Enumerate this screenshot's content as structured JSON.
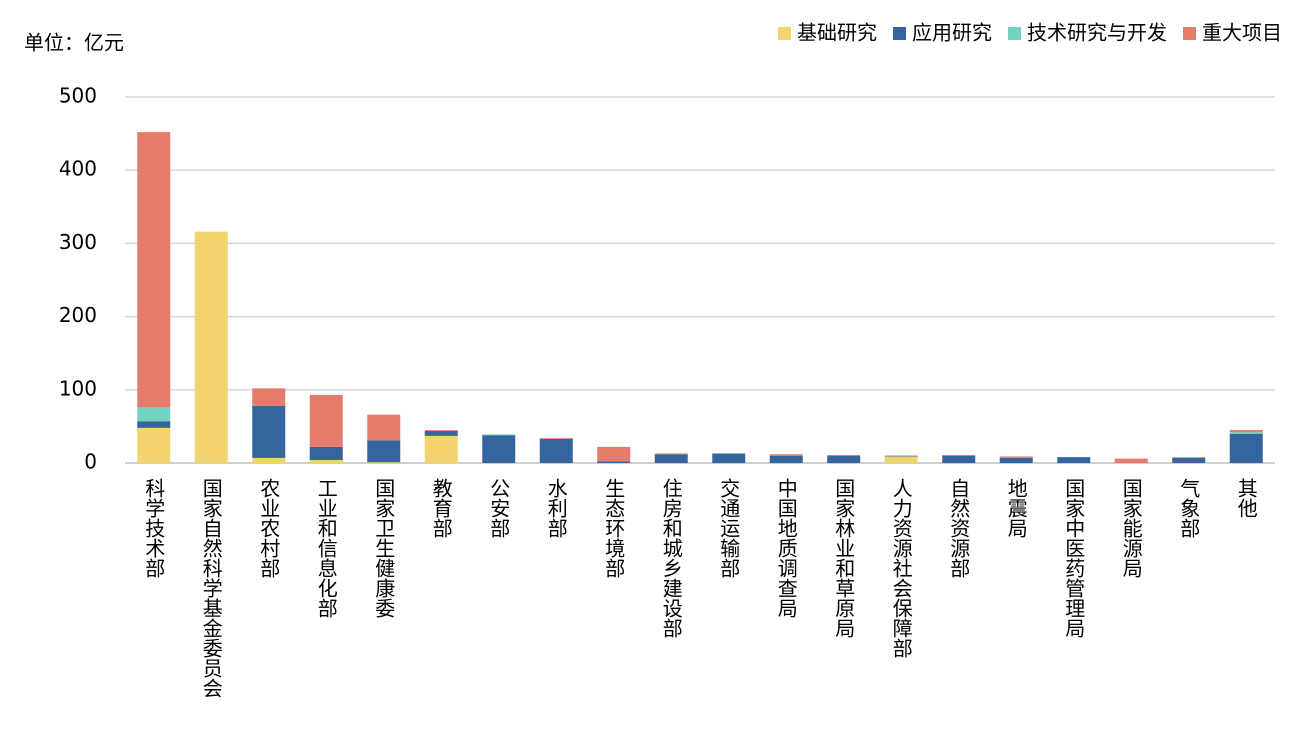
{
  "chart_data": {
    "type": "stacked-bar",
    "unit_label": "单位：亿元",
    "categories": [
      "科学技术部",
      "国家自然科学基金委员会",
      "农业农村部",
      "工业和信息化部",
      "国家卫生健康委",
      "教育部",
      "公安部",
      "水利部",
      "生态环境部",
      "住房和城乡建设部",
      "交通运输部",
      "中国地质调查局",
      "国家林业和草原局",
      "人力资源社会保障部",
      "自然资源部",
      "地震局",
      "国家中医药管理局",
      "国家能源局",
      "气象部",
      "其他"
    ],
    "series": [
      {
        "name": "基础研究",
        "color": "#f2d36d",
        "values": [
          48,
          316,
          7,
          4,
          1,
          37,
          0,
          0,
          0,
          0,
          0,
          0,
          0,
          9,
          0,
          0,
          0,
          0,
          0,
          0
        ]
      },
      {
        "name": "应用研究",
        "color": "#35659e",
        "values": [
          9,
          0,
          71,
          18,
          30,
          7,
          38,
          33,
          2,
          12,
          13,
          10,
          10,
          1,
          10,
          7,
          8,
          0,
          7,
          40
        ]
      },
      {
        "name": "技术研究与开发",
        "color": "#6fd3bd",
        "values": [
          19,
          0,
          0,
          0,
          0,
          0,
          1,
          0,
          0,
          0,
          0,
          0,
          0,
          0,
          0,
          0,
          0,
          0,
          0,
          2
        ]
      },
      {
        "name": "重大项目",
        "color": "#e57b6b",
        "values": [
          376,
          0,
          24,
          71,
          35,
          1,
          0,
          1,
          20,
          1,
          0,
          2,
          1,
          0,
          1,
          2,
          0,
          6,
          1,
          3
        ]
      }
    ],
    "ylim": [
      0,
      500
    ],
    "yticks": [
      0,
      100,
      200,
      300,
      400,
      500
    ],
    "grid": true,
    "legend": "top-right"
  }
}
